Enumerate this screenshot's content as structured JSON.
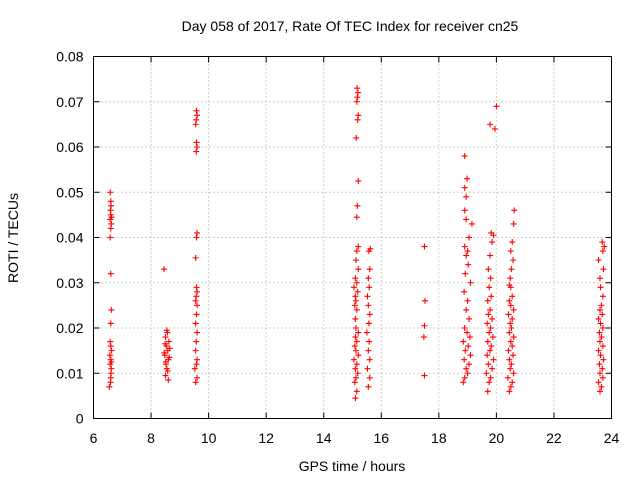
{
  "chart_data": {
    "type": "scatter",
    "title": "Day 058 of 2017, Rate Of TEC Index for receiver cn25",
    "xlabel": "GPS time / hours",
    "ylabel": "ROTI / TECUs",
    "xlim": [
      6,
      24
    ],
    "ylim": [
      0,
      0.08
    ],
    "xticks": [
      "6",
      "8",
      "10",
      "12",
      "14",
      "16",
      "18",
      "20",
      "22",
      "24"
    ],
    "yticks": [
      "0",
      "0.01",
      "0.02",
      "0.03",
      "0.04",
      "0.05",
      "0.06",
      "0.07",
      "0.08"
    ],
    "grid": true,
    "marker": "plus",
    "color": "#ff0000",
    "series": [
      {
        "name": "ROTI",
        "points": [
          [
            6.55,
            0.007
          ],
          [
            6.6,
            0.009
          ],
          [
            6.62,
            0.011
          ],
          [
            6.58,
            0.012
          ],
          [
            6.6,
            0.013
          ],
          [
            6.57,
            0.014
          ],
          [
            6.63,
            0.015
          ],
          [
            6.6,
            0.016
          ],
          [
            6.58,
            0.017
          ],
          [
            6.61,
            0.01
          ],
          [
            6.59,
            0.008
          ],
          [
            6.62,
            0.0125
          ],
          [
            6.6,
            0.021
          ],
          [
            6.62,
            0.024
          ],
          [
            6.6,
            0.032
          ],
          [
            6.58,
            0.04
          ],
          [
            6.6,
            0.042
          ],
          [
            6.62,
            0.043
          ],
          [
            6.58,
            0.044
          ],
          [
            6.6,
            0.045
          ],
          [
            6.63,
            0.0445
          ],
          [
            6.59,
            0.046
          ],
          [
            6.61,
            0.047
          ],
          [
            6.6,
            0.048
          ],
          [
            6.58,
            0.05
          ],
          [
            8.5,
            0.0095
          ],
          [
            8.55,
            0.011
          ],
          [
            8.52,
            0.012
          ],
          [
            8.6,
            0.013
          ],
          [
            8.48,
            0.014
          ],
          [
            8.58,
            0.015
          ],
          [
            8.53,
            0.016
          ],
          [
            8.62,
            0.017
          ],
          [
            8.5,
            0.018
          ],
          [
            8.57,
            0.019
          ],
          [
            8.6,
            0.0085
          ],
          [
            8.55,
            0.0195
          ],
          [
            8.51,
            0.0125
          ],
          [
            8.63,
            0.0135
          ],
          [
            8.46,
            0.0145
          ],
          [
            8.58,
            0.0105
          ],
          [
            8.65,
            0.0155
          ],
          [
            8.49,
            0.0165
          ],
          [
            8.45,
            0.033
          ],
          [
            9.55,
            0.008
          ],
          [
            9.6,
            0.009
          ],
          [
            9.52,
            0.011
          ],
          [
            9.58,
            0.012
          ],
          [
            9.6,
            0.013
          ],
          [
            9.55,
            0.015
          ],
          [
            9.57,
            0.017
          ],
          [
            9.6,
            0.019
          ],
          [
            9.55,
            0.021
          ],
          [
            9.58,
            0.023
          ],
          [
            9.6,
            0.025
          ],
          [
            9.55,
            0.026
          ],
          [
            9.57,
            0.027
          ],
          [
            9.6,
            0.028
          ],
          [
            9.58,
            0.029
          ],
          [
            9.55,
            0.0355
          ],
          [
            9.58,
            0.04
          ],
          [
            9.6,
            0.041
          ],
          [
            9.57,
            0.059
          ],
          [
            9.6,
            0.06
          ],
          [
            9.58,
            0.061
          ],
          [
            9.55,
            0.065
          ],
          [
            9.57,
            0.066
          ],
          [
            9.6,
            0.067
          ],
          [
            9.58,
            0.068
          ],
          [
            15.1,
            0.0045
          ],
          [
            15.15,
            0.006
          ],
          [
            15.08,
            0.008
          ],
          [
            15.12,
            0.009
          ],
          [
            15.18,
            0.01
          ],
          [
            15.1,
            0.011
          ],
          [
            15.15,
            0.012
          ],
          [
            15.05,
            0.013
          ],
          [
            15.2,
            0.014
          ],
          [
            15.12,
            0.015
          ],
          [
            15.08,
            0.016
          ],
          [
            15.15,
            0.017
          ],
          [
            15.1,
            0.018
          ],
          [
            15.2,
            0.019
          ],
          [
            15.12,
            0.02
          ],
          [
            15.1,
            0.022
          ],
          [
            15.15,
            0.024
          ],
          [
            15.08,
            0.025
          ],
          [
            15.12,
            0.026
          ],
          [
            15.1,
            0.027
          ],
          [
            15.18,
            0.028
          ],
          [
            15.05,
            0.029
          ],
          [
            15.15,
            0.03
          ],
          [
            15.1,
            0.031
          ],
          [
            15.2,
            0.033
          ],
          [
            15.12,
            0.035
          ],
          [
            15.15,
            0.037
          ],
          [
            15.2,
            0.038
          ],
          [
            15.15,
            0.0445
          ],
          [
            15.17,
            0.047
          ],
          [
            15.2,
            0.0525
          ],
          [
            15.13,
            0.062
          ],
          [
            15.18,
            0.066
          ],
          [
            15.2,
            0.067
          ],
          [
            15.15,
            0.07
          ],
          [
            15.17,
            0.071
          ],
          [
            15.19,
            0.072
          ],
          [
            15.16,
            0.073
          ],
          [
            15.55,
            0.007
          ],
          [
            15.6,
            0.009
          ],
          [
            15.52,
            0.011
          ],
          [
            15.6,
            0.013
          ],
          [
            15.55,
            0.015
          ],
          [
            15.58,
            0.017
          ],
          [
            15.5,
            0.019
          ],
          [
            15.57,
            0.021
          ],
          [
            15.6,
            0.023
          ],
          [
            15.55,
            0.025
          ],
          [
            15.52,
            0.027
          ],
          [
            15.58,
            0.029
          ],
          [
            15.55,
            0.031
          ],
          [
            15.6,
            0.033
          ],
          [
            15.57,
            0.037
          ],
          [
            15.62,
            0.0375
          ],
          [
            17.5,
            0.0095
          ],
          [
            17.48,
            0.018
          ],
          [
            17.5,
            0.0205
          ],
          [
            17.52,
            0.026
          ],
          [
            17.5,
            0.038
          ],
          [
            18.85,
            0.008
          ],
          [
            18.9,
            0.009
          ],
          [
            19.0,
            0.01
          ],
          [
            18.95,
            0.011
          ],
          [
            19.05,
            0.012
          ],
          [
            18.88,
            0.013
          ],
          [
            19.1,
            0.014
          ],
          [
            18.92,
            0.015
          ],
          [
            19.02,
            0.016
          ],
          [
            18.85,
            0.017
          ],
          [
            19.08,
            0.018
          ],
          [
            18.98,
            0.019
          ],
          [
            18.9,
            0.02
          ],
          [
            19.05,
            0.022
          ],
          [
            18.95,
            0.024
          ],
          [
            19.0,
            0.026
          ],
          [
            18.88,
            0.028
          ],
          [
            19.1,
            0.03
          ],
          [
            18.92,
            0.032
          ],
          [
            19.02,
            0.034
          ],
          [
            18.95,
            0.036
          ],
          [
            19.0,
            0.037
          ],
          [
            18.9,
            0.038
          ],
          [
            19.05,
            0.04
          ],
          [
            19.15,
            0.043
          ],
          [
            18.95,
            0.044
          ],
          [
            18.9,
            0.046
          ],
          [
            18.95,
            0.049
          ],
          [
            18.9,
            0.051
          ],
          [
            18.98,
            0.053
          ],
          [
            18.9,
            0.058
          ],
          [
            19.7,
            0.006
          ],
          [
            19.75,
            0.008
          ],
          [
            19.8,
            0.009
          ],
          [
            19.65,
            0.01
          ],
          [
            19.85,
            0.011
          ],
          [
            19.72,
            0.012
          ],
          [
            19.9,
            0.013
          ],
          [
            19.68,
            0.014
          ],
          [
            19.78,
            0.015
          ],
          [
            19.82,
            0.016
          ],
          [
            19.7,
            0.017
          ],
          [
            19.88,
            0.018
          ],
          [
            19.75,
            0.019
          ],
          [
            19.8,
            0.02
          ],
          [
            19.68,
            0.021
          ],
          [
            19.85,
            0.022
          ],
          [
            19.72,
            0.023
          ],
          [
            19.78,
            0.024
          ],
          [
            19.7,
            0.026
          ],
          [
            19.82,
            0.027
          ],
          [
            19.75,
            0.029
          ],
          [
            19.8,
            0.031
          ],
          [
            19.72,
            0.033
          ],
          [
            19.78,
            0.036
          ],
          [
            19.85,
            0.039
          ],
          [
            19.82,
            0.041
          ],
          [
            19.9,
            0.0405
          ],
          [
            19.78,
            0.065
          ],
          [
            19.95,
            0.064
          ],
          [
            20.0,
            0.069
          ],
          [
            20.45,
            0.006
          ],
          [
            20.5,
            0.007
          ],
          [
            20.55,
            0.008
          ],
          [
            20.4,
            0.009
          ],
          [
            20.6,
            0.01
          ],
          [
            20.48,
            0.011
          ],
          [
            20.52,
            0.012
          ],
          [
            20.45,
            0.013
          ],
          [
            20.58,
            0.014
          ],
          [
            20.42,
            0.015
          ],
          [
            20.55,
            0.016
          ],
          [
            20.5,
            0.017
          ],
          [
            20.6,
            0.018
          ],
          [
            20.45,
            0.019
          ],
          [
            20.52,
            0.02
          ],
          [
            20.48,
            0.021
          ],
          [
            20.55,
            0.022
          ],
          [
            20.42,
            0.023
          ],
          [
            20.6,
            0.024
          ],
          [
            20.5,
            0.025
          ],
          [
            20.45,
            0.026
          ],
          [
            20.55,
            0.027
          ],
          [
            20.5,
            0.029
          ],
          [
            20.48,
            0.031
          ],
          [
            20.52,
            0.033
          ],
          [
            20.58,
            0.035
          ],
          [
            20.5,
            0.037
          ],
          [
            20.55,
            0.039
          ],
          [
            20.45,
            0.0295
          ],
          [
            20.6,
            0.043
          ],
          [
            20.62,
            0.046
          ],
          [
            23.6,
            0.006
          ],
          [
            23.65,
            0.007
          ],
          [
            23.55,
            0.008
          ],
          [
            23.7,
            0.009
          ],
          [
            23.6,
            0.01
          ],
          [
            23.68,
            0.011
          ],
          [
            23.58,
            0.012
          ],
          [
            23.72,
            0.013
          ],
          [
            23.62,
            0.014
          ],
          [
            23.55,
            0.015
          ],
          [
            23.7,
            0.016
          ],
          [
            23.6,
            0.017
          ],
          [
            23.65,
            0.018
          ],
          [
            23.58,
            0.019
          ],
          [
            23.7,
            0.02
          ],
          [
            23.62,
            0.021
          ],
          [
            23.55,
            0.022
          ],
          [
            23.68,
            0.023
          ],
          [
            23.6,
            0.024
          ],
          [
            23.65,
            0.025
          ],
          [
            23.7,
            0.027
          ],
          [
            23.62,
            0.029
          ],
          [
            23.6,
            0.031
          ],
          [
            23.72,
            0.033
          ],
          [
            23.55,
            0.035
          ],
          [
            23.7,
            0.037
          ],
          [
            23.75,
            0.038
          ],
          [
            23.68,
            0.039
          ]
        ]
      }
    ]
  }
}
